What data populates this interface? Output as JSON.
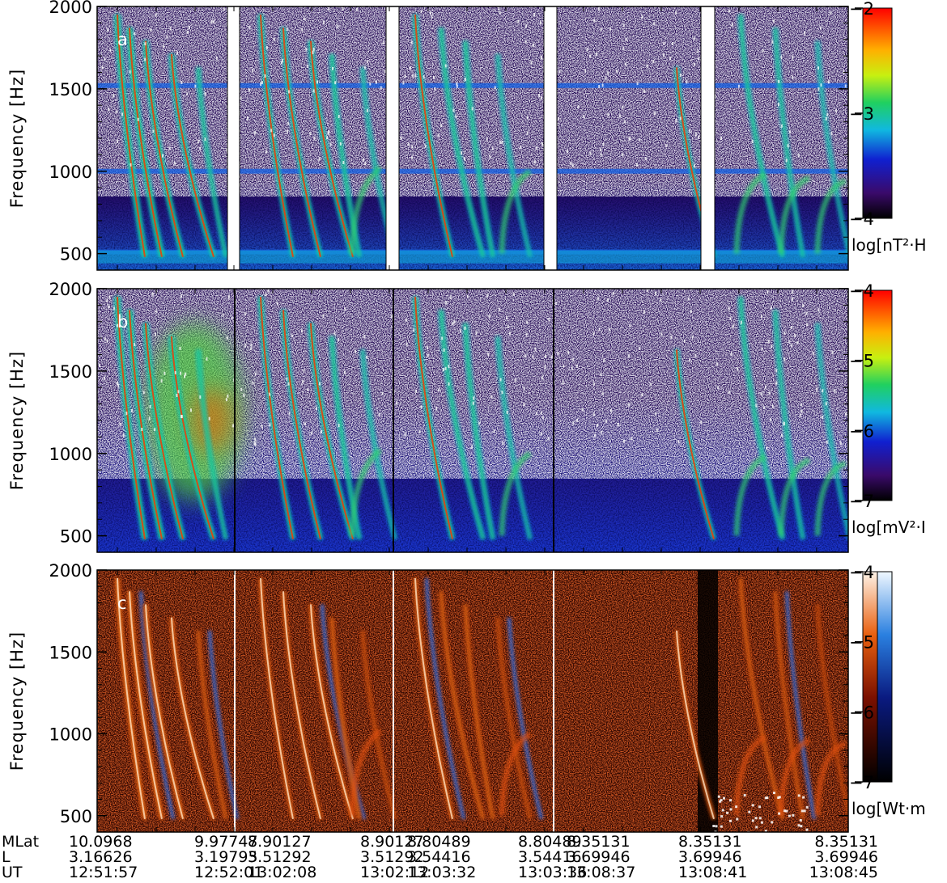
{
  "chart_data": [
    {
      "type": "heatmap",
      "panel": "a",
      "ylabel": "Frequency [Hz]",
      "ylim": [
        400,
        2000
      ],
      "yticks": [
        500,
        1000,
        1500,
        2000
      ],
      "colorbar": {
        "label": "log[nT²·H",
        "ticks": [
          -2,
          -3,
          -4
        ],
        "range": [
          -4,
          -2
        ],
        "scheme": "rainbow"
      },
      "segments": 5,
      "gaps_white": true
    },
    {
      "type": "heatmap",
      "panel": "b",
      "ylabel": "Frequency [Hz]",
      "ylim": [
        400,
        2000
      ],
      "yticks": [
        500,
        1000,
        1500,
        2000
      ],
      "colorbar": {
        "label": "log[mV²·I",
        "ticks": [
          -4,
          -5,
          -6,
          -7
        ],
        "range": [
          -7,
          -4
        ],
        "scheme": "rainbow"
      },
      "segments": 5,
      "gaps_white": false
    },
    {
      "type": "heatmap",
      "panel": "c",
      "ylabel": "Frequency [Hz]",
      "ylim": [
        400,
        2000
      ],
      "yticks": [
        500,
        1000,
        1500,
        2000
      ],
      "colorbar": {
        "label": "log[Wt·m",
        "ticks": [
          -4,
          -5,
          -6,
          -7
        ],
        "range": [
          -7,
          -4
        ],
        "scheme": "red-blue"
      },
      "segments": 5,
      "gaps_white": false
    }
  ],
  "footer": {
    "row_labels": [
      "MLat",
      "L",
      "UT"
    ],
    "columns": [
      {
        "mlat": "10.0968",
        "l": "3.16626",
        "ut": "12:51:57"
      },
      {
        "mlat": "9.97747",
        "l": "3.19795",
        "ut": "12:52:01"
      },
      {
        "mlat": "8.90127",
        "l": "3.51292",
        "ut": "13:02:08"
      },
      {
        "mlat": "8.90127",
        "l": "3.51292",
        "ut": "13:02:12"
      },
      {
        "mlat": "8.80489",
        "l": "3.54416",
        "ut": "13:03:32"
      },
      {
        "mlat": "8.80489",
        "l": "3.54416",
        "ut": "13:03:36"
      },
      {
        "mlat": "8.35131",
        "l": "3.69946",
        "ut": "13:08:37"
      },
      {
        "mlat": "8.35131",
        "l": "3.69946",
        "ut": "13:08:41"
      },
      {
        "mlat": "8.35131",
        "l": "3.69946",
        "ut": "13:08:45"
      }
    ]
  }
}
